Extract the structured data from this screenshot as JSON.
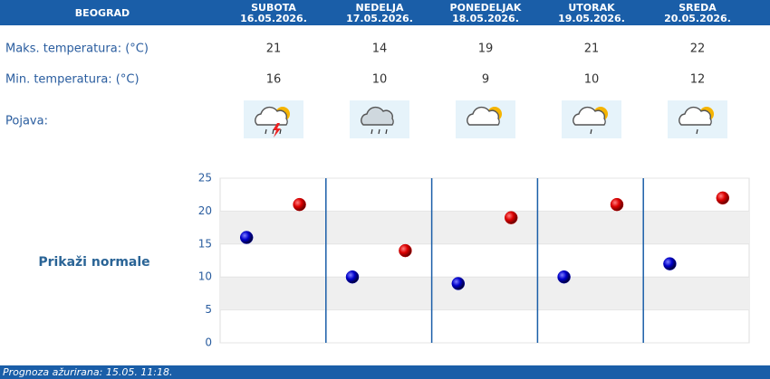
{
  "header": {
    "city": "BEOGRAD"
  },
  "days": [
    {
      "name": "SUBOTA",
      "date": "16.05.2026."
    },
    {
      "name": "NEDELJA",
      "date": "17.05.2026."
    },
    {
      "name": "PONEDELJAK",
      "date": "18.05.2026."
    },
    {
      "name": "UTORAK",
      "date": "19.05.2026."
    },
    {
      "name": "SREDA",
      "date": "20.05.2026."
    }
  ],
  "rows": {
    "phenomenon": "Pojava:"
  },
  "link": "Prikaži normale",
  "footer": "Prognoza ažurirana:  15.05. 11:18.",
  "chart_data": {
    "type": "dot",
    "series": [
      {
        "name": "Maks. temperatura: (°C)",
        "color": "#cc0000",
        "values": [
          21,
          14,
          19,
          21,
          22
        ]
      },
      {
        "name": "Min. temperatura: (°C)",
        "color": "#0000bb",
        "values": [
          16,
          10,
          9,
          10,
          12
        ]
      }
    ],
    "ylim": [
      0,
      25
    ],
    "yticks": [
      0,
      5,
      10,
      15,
      20,
      25
    ],
    "grid": true
  }
}
